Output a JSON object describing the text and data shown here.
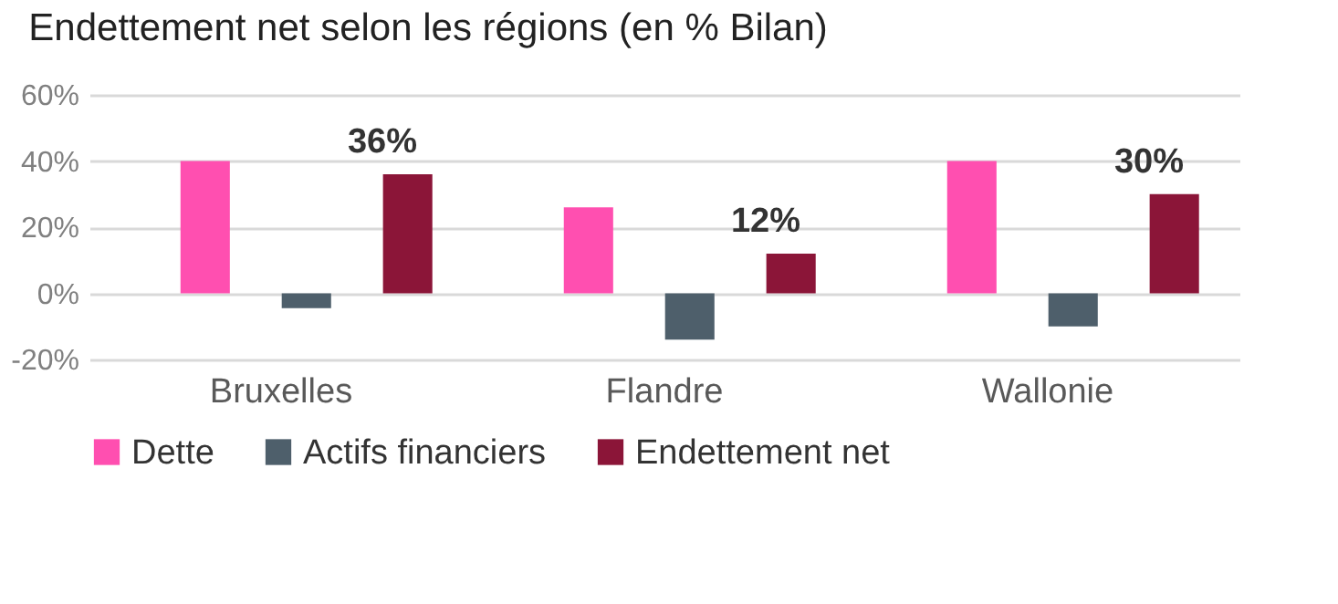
{
  "chart_data": {
    "type": "bar",
    "title": "Endettement net selon les régions (en % Bilan)",
    "categories": [
      "Bruxelles",
      "Flandre",
      "Wallonie"
    ],
    "series": [
      {
        "name": "Dette",
        "color": "#ff4fb0",
        "values": [
          40,
          26,
          40
        ]
      },
      {
        "name": "Actifs financiers",
        "color": "#4e5f6b",
        "values": [
          -4.5,
          -14,
          -10
        ]
      },
      {
        "name": "Endettement net",
        "color": "#8b1538",
        "values": [
          36,
          12,
          30
        ],
        "value_labels": [
          "36%",
          "12%",
          "30%"
        ]
      }
    ],
    "ylim": [
      -20,
      60
    ],
    "yticks": [
      {
        "value": -20,
        "label": "-20%"
      },
      {
        "value": 0,
        "label": "0%"
      },
      {
        "value": 20,
        "label": "20%"
      },
      {
        "value": 40,
        "label": "40%"
      },
      {
        "value": 60,
        "label": "60%"
      }
    ],
    "grid": "y",
    "legend": "bottom"
  }
}
